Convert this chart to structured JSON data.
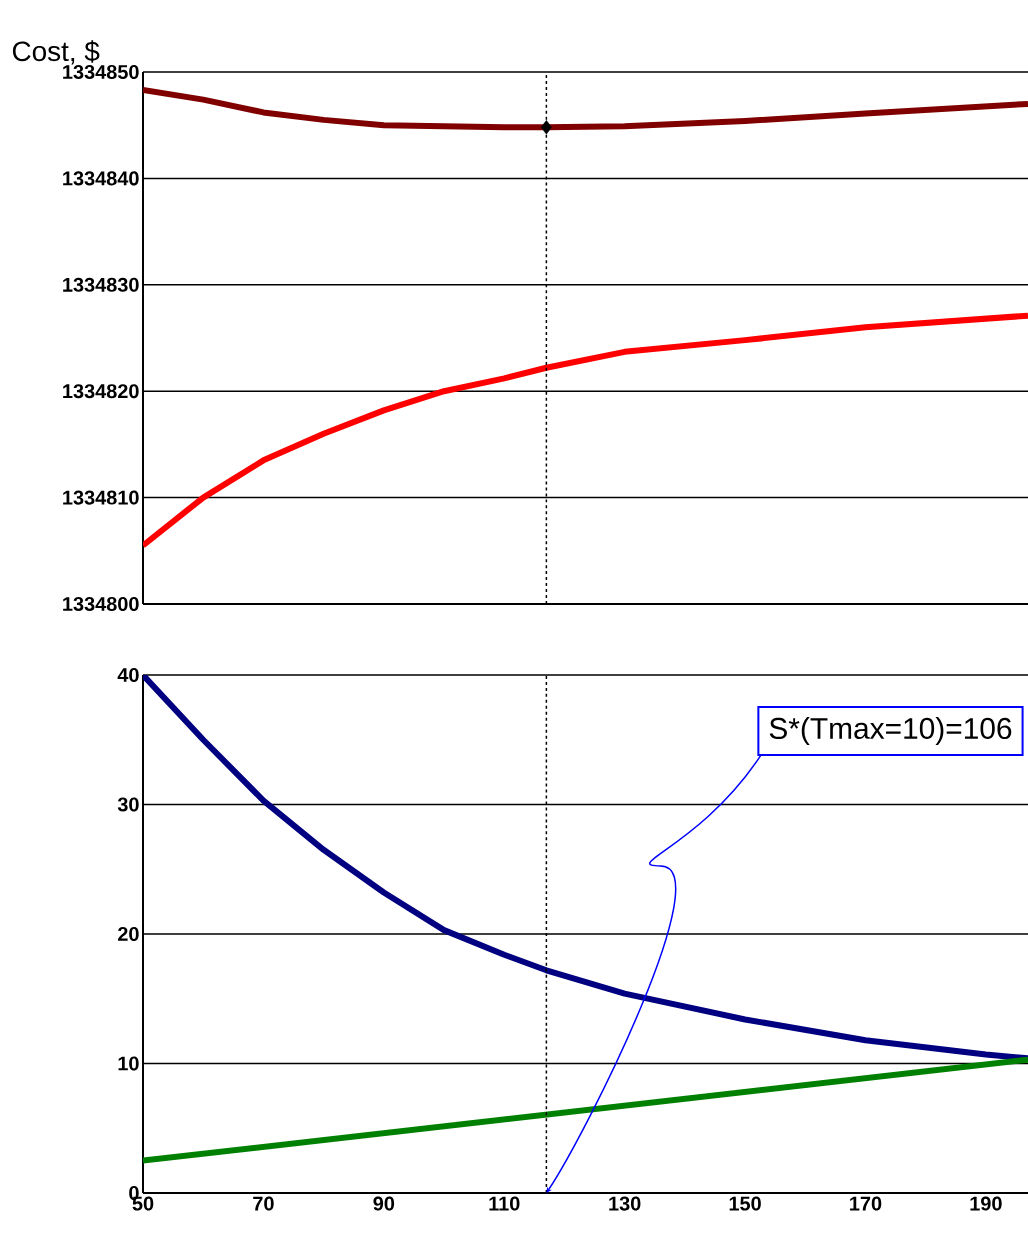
{
  "chart_data": [
    {
      "type": "line",
      "ylabel": "Cost, $",
      "x": [
        50,
        60,
        70,
        80,
        90,
        100,
        110,
        117,
        130,
        150,
        170,
        197
      ],
      "series": [
        {
          "color": "#800000",
          "values": [
            1334848.3,
            1334847.4,
            1334846.2,
            1334845.5,
            1334845,
            1334844.9,
            1334844.8,
            1334844.8,
            1334844.9,
            1334845.4,
            1334846.1,
            1334847
          ]
        },
        {
          "color": "#ff0000",
          "values": [
            1334805.5,
            1334810,
            1334813.5,
            1334816,
            1334818.2,
            1334820,
            1334821.2,
            1334822.2,
            1334823.7,
            1334824.8,
            1334826,
            1334827.1
          ]
        },
        {
          "type": "scatter",
          "color": "#000000",
          "marker": "diamond",
          "x": [
            117
          ],
          "values": [
            1334844.8
          ]
        }
      ],
      "xlim": [
        50,
        197
      ],
      "ylim": [
        1334800,
        1334850
      ],
      "xticks": [
        50,
        70,
        90,
        110,
        130,
        150,
        170,
        190
      ],
      "yticks": [
        1334800,
        1334810,
        1334820,
        1334830,
        1334840,
        1334850
      ],
      "grid": "y",
      "tick_labels": "y",
      "ref_lines": [
        {
          "axis": "x",
          "value": 117,
          "color": "#000000",
          "line_style": "dashed"
        }
      ]
    },
    {
      "type": "line",
      "x": [
        50,
        60,
        70,
        80,
        90,
        100,
        110,
        117,
        130,
        150,
        170,
        190,
        197
      ],
      "series": [
        {
          "color": "#000080",
          "values": [
            40,
            35,
            30.3,
            26.5,
            23.2,
            20.3,
            18.4,
            17.2,
            15.4,
            13.4,
            11.8,
            10.7,
            10.4
          ]
        },
        {
          "color": "#008000",
          "x": [
            50,
            197
          ],
          "values": [
            2.5,
            10.3
          ]
        }
      ],
      "xlim": [
        50,
        197
      ],
      "ylim": [
        0,
        40
      ],
      "xticks": [
        50,
        70,
        90,
        110,
        130,
        150,
        170,
        190
      ],
      "yticks": [
        0,
        10,
        20,
        30,
        40
      ],
      "grid": "y",
      "ref_lines": [
        {
          "axis": "x",
          "value": 117,
          "color": "#000000",
          "line_style": "dashed"
        }
      ],
      "annotations": [
        {
          "text": "S*(Tmax=10)=106",
          "x": 117,
          "y": 0
        }
      ]
    }
  ]
}
